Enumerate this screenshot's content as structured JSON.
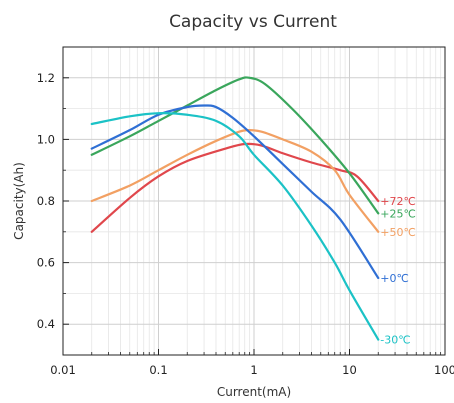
{
  "chart_data": {
    "type": "line",
    "title": "Capacity vs Current",
    "xlabel": "Current(mA)",
    "ylabel": "Capacity(Ah)",
    "x_scale": "log",
    "xlim": [
      0.01,
      100
    ],
    "ylim": [
      0.3,
      1.3
    ],
    "x_ticks": [
      0.01,
      0.1,
      1,
      10,
      100
    ],
    "x_tick_labels": [
      "0.01",
      "0.1",
      "1",
      "10",
      "100"
    ],
    "y_ticks": [
      0.4,
      0.6,
      0.8,
      1.0,
      1.2
    ],
    "y_tick_labels": [
      "0.4",
      "0.6",
      "0.8",
      "1.0",
      "1.2"
    ],
    "grid": true,
    "legend": "inline labels at line ends",
    "series": [
      {
        "name": "+72℃",
        "color": "#e0474c",
        "x": [
          0.02,
          0.05,
          0.1,
          0.2,
          0.5,
          0.8,
          1.2,
          2,
          4,
          8,
          12,
          20
        ],
        "y": [
          0.7,
          0.81,
          0.88,
          0.93,
          0.97,
          0.985,
          0.98,
          0.955,
          0.925,
          0.9,
          0.88,
          0.8
        ]
      },
      {
        "name": "+25℃",
        "color": "#3aa65c",
        "x": [
          0.02,
          0.05,
          0.1,
          0.2,
          0.4,
          0.7,
          0.9,
          1.3,
          2.5,
          5,
          10,
          20
        ],
        "y": [
          0.95,
          1.01,
          1.06,
          1.11,
          1.16,
          1.195,
          1.2,
          1.18,
          1.1,
          1.0,
          0.89,
          0.76
        ]
      },
      {
        "name": "+50℃",
        "color": "#f2a063",
        "x": [
          0.02,
          0.05,
          0.1,
          0.2,
          0.4,
          0.7,
          0.9,
          1.2,
          2,
          4,
          7,
          10,
          20
        ],
        "y": [
          0.8,
          0.85,
          0.9,
          0.95,
          0.995,
          1.025,
          1.03,
          1.025,
          1.0,
          0.96,
          0.9,
          0.82,
          0.7
        ]
      },
      {
        "name": "+0℃",
        "color": "#2f6fd4",
        "x": [
          0.02,
          0.05,
          0.1,
          0.2,
          0.3,
          0.4,
          0.6,
          1,
          2,
          4,
          8,
          20
        ],
        "y": [
          0.97,
          1.03,
          1.08,
          1.105,
          1.11,
          1.105,
          1.07,
          1.01,
          0.92,
          0.83,
          0.74,
          0.55
        ]
      },
      {
        "name": "-30℃",
        "color": "#1bc2c6",
        "x": [
          0.02,
          0.05,
          0.1,
          0.2,
          0.4,
          0.7,
          1,
          2,
          4,
          7,
          10,
          20
        ],
        "y": [
          1.05,
          1.075,
          1.085,
          1.08,
          1.06,
          1.01,
          0.95,
          0.85,
          0.72,
          0.6,
          0.51,
          0.35
        ]
      }
    ]
  }
}
